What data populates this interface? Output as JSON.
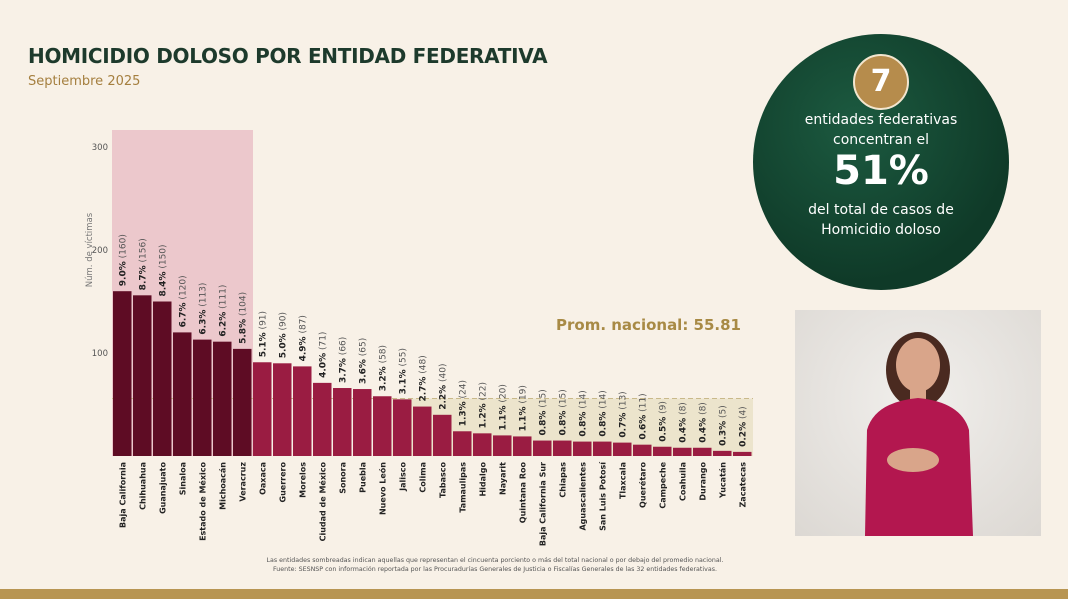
{
  "header": {
    "title": "HOMICIDIO DOLOSO POR ENTIDAD FEDERATIVA",
    "subtitle": "Septiembre 2025"
  },
  "highlight": {
    "count": "7",
    "line1": "entidades federativas concentran el",
    "percent": "51%",
    "line2": "del total de casos de Homicidio doloso"
  },
  "notes": {
    "line1": "Las entidades sombreadas indican aquellas que representan el cincuenta porciento o más del total nacional o por debajo del promedio nacional.",
    "line2": "Fuente: SESNSP con información reportada por las Procuradurías Generales de Justicia o Fiscalías Generales de las 32 entidades federativas."
  },
  "video": {
    "description_icon": "sign-language-interpreter"
  },
  "colors": {
    "top_bars": "#5e0c24",
    "other_bars": "#9a1c42",
    "top_shade": "#ecc8cc",
    "low_shade": "#ece4cc",
    "avg": "#a88a45",
    "green": "#0f3a28"
  },
  "chart_data": {
    "type": "bar",
    "title": "HOMICIDIO DOLOSO POR ENTIDAD FEDERATIVA",
    "ylabel": "Núm. de víctimas",
    "ylim": [
      0,
      300
    ],
    "yticks": [
      100,
      200,
      300
    ],
    "grid": false,
    "average": {
      "label": "Prom. nacional: 55.81",
      "value": 55.81
    },
    "categories": [
      "Baja California",
      "Chihuahua",
      "Guanajuato",
      "Sinaloa",
      "Estado de México",
      "Michoacán",
      "Veracruz",
      "Oaxaca",
      "Guerrero",
      "Morelos",
      "Ciudad de México",
      "Sonora",
      "Puebla",
      "Nuevo León",
      "Jalisco",
      "Colima",
      "Tabasco",
      "Tamaulipas",
      "Hidalgo",
      "Nayarit",
      "Quintana Roo",
      "Baja California Sur",
      "Chiapas",
      "Aguascalientes",
      "San Luis Potosí",
      "Tlaxcala",
      "Querétaro",
      "Campeche",
      "Coahuila",
      "Durango",
      "Yucatán",
      "Zacatecas"
    ],
    "values": [
      160,
      156,
      150,
      120,
      113,
      111,
      104,
      91,
      90,
      87,
      71,
      66,
      65,
      58,
      55,
      48,
      40,
      24,
      22,
      20,
      19,
      15,
      15,
      14,
      14,
      13,
      11,
      9,
      8,
      8,
      5,
      4
    ],
    "percent_labels": [
      "9.0%",
      "8.7%",
      "8.4%",
      "6.7%",
      "6.3%",
      "6.2%",
      "5.8%",
      "5.1%",
      "5.0%",
      "4.9%",
      "4.0%",
      "3.7%",
      "3.6%",
      "3.2%",
      "3.1%",
      "2.7%",
      "2.2%",
      "1.3%",
      "1.2%",
      "1.1%",
      "1.1%",
      "0.8%",
      "0.8%",
      "0.8%",
      "0.8%",
      "0.7%",
      "0.6%",
      "0.5%",
      "0.4%",
      "0.4%",
      "0.3%",
      "0.2%"
    ],
    "highlighted_top_count": 7
  }
}
